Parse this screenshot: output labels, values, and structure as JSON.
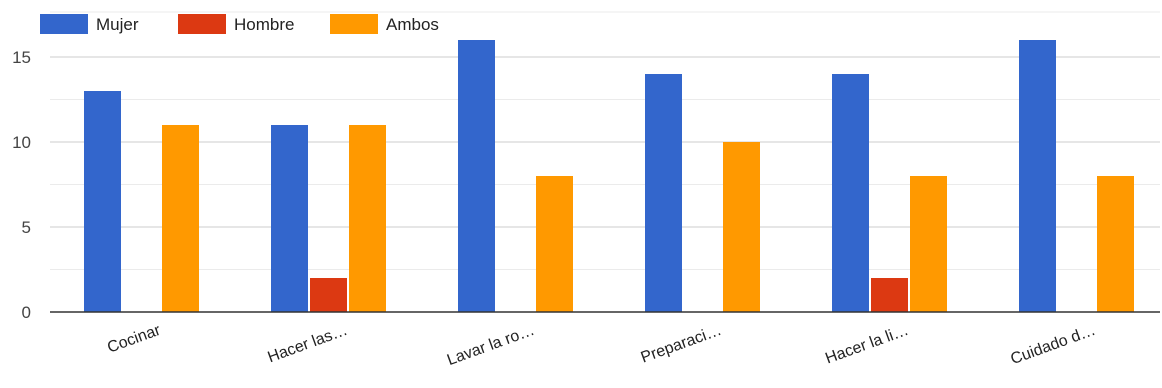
{
  "chart_data": {
    "type": "bar",
    "categories": [
      "Cocinar",
      "Hacer las…",
      "Lavar la ro…",
      "Preparaci…",
      "Hacer la li…",
      "Cuidado d…"
    ],
    "series": [
      {
        "name": "Mujer",
        "color": "#3366cc",
        "values": [
          13,
          11,
          16,
          14,
          14,
          16
        ]
      },
      {
        "name": "Hombre",
        "color": "#dc3912",
        "values": [
          0,
          2,
          0,
          0,
          2,
          0
        ]
      },
      {
        "name": "Ambos",
        "color": "#ff9900",
        "values": [
          11,
          11,
          8,
          10,
          8,
          8
        ]
      }
    ],
    "y_ticks": [
      "0",
      "5",
      "10",
      "15"
    ],
    "ylim": [
      0,
      17
    ],
    "grid": true,
    "legend_position": "top-left",
    "title": "",
    "xlabel": "",
    "ylabel": ""
  }
}
